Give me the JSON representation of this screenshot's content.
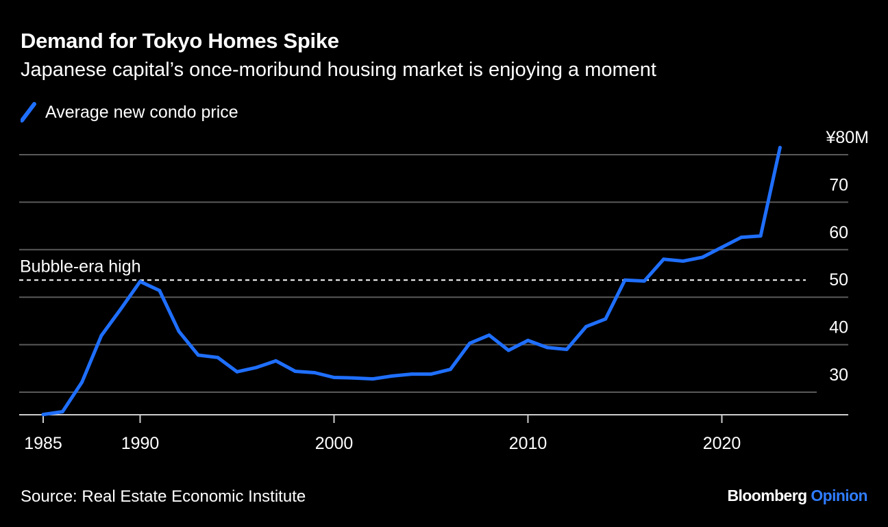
{
  "title": "Demand for Tokyo Homes Spike",
  "subtitle": "Japanese capital’s once-moribund housing market is enjoying a moment",
  "source": "Source: Real Estate Economic Institute",
  "brand": {
    "name": "Bloomberg",
    "accent": "Opinion"
  },
  "colors": {
    "background": "#000000",
    "series": "#1f6fff",
    "grid": "#5a5a5a",
    "text": "#ffffff"
  },
  "chart_data": {
    "type": "line",
    "title": "Demand for Tokyo Homes Spike",
    "subtitle": "Japanese capital’s once-moribund housing market is enjoying a moment",
    "series": [
      {
        "name": "Average new condo price",
        "x": [
          1985,
          1986,
          1987,
          1988,
          1989,
          1990,
          1991,
          1992,
          1993,
          1994,
          1995,
          1996,
          1997,
          1998,
          1999,
          2000,
          2001,
          2002,
          2003,
          2004,
          2005,
          2006,
          2007,
          2008,
          2009,
          2010,
          2011,
          2012,
          2013,
          2014,
          2015,
          2016,
          2017,
          2018,
          2019,
          2020,
          2021,
          2022,
          2023
        ],
        "values": [
          25.3,
          25.9,
          32.1,
          41.9,
          47.5,
          53.3,
          51.4,
          42.8,
          37.8,
          37.3,
          34.3,
          35.2,
          36.6,
          34.4,
          34.1,
          33.1,
          33.0,
          32.8,
          33.4,
          33.8,
          33.8,
          34.8,
          40.3,
          42.0,
          38.8,
          40.9,
          39.4,
          39.0,
          43.8,
          45.4,
          53.6,
          53.4,
          58.0,
          57.6,
          58.4,
          60.5,
          62.6,
          62.9,
          81.5
        ]
      }
    ],
    "reference_line": {
      "label": "Bubble-era high",
      "value": 53.3,
      "style": "dashed"
    },
    "x_ticks": [
      1985,
      1990,
      2000,
      2010,
      2020
    ],
    "y_ticks": [
      {
        "value": 30,
        "label": "30"
      },
      {
        "value": 40,
        "label": "40"
      },
      {
        "value": 50,
        "label": "50"
      },
      {
        "value": 60,
        "label": "60"
      },
      {
        "value": 70,
        "label": "70"
      },
      {
        "value": 80,
        "label": "¥80M"
      }
    ],
    "xlim": [
      1985,
      2025
    ],
    "ylim": [
      25,
      80
    ],
    "y_axis_position": "right",
    "grid": true,
    "legend": "top-left"
  }
}
